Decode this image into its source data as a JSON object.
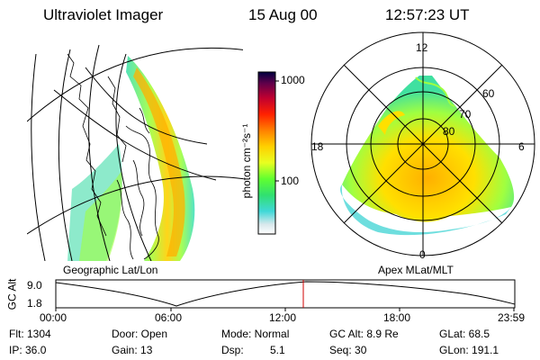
{
  "header": {
    "instrument": "Ultraviolet Imager",
    "date": "15 Aug 00",
    "time": "12:57:23 UT"
  },
  "colorbar": {
    "unit_label": "photon cm⁻²s⁻¹",
    "ticks": [
      "1000",
      "100"
    ]
  },
  "geo_panel": {
    "caption": "Geographic Lat/Lon"
  },
  "polar_panel": {
    "caption": "Apex MLat/MLT",
    "mlt_labels": {
      "top": "12",
      "left": "18",
      "right": "6",
      "bottom": "0"
    },
    "lat_labels": [
      "60",
      "70",
      "80"
    ]
  },
  "altitude_strip": {
    "ylabel": "GC Alt",
    "yticks": [
      "9.0",
      "1.8"
    ],
    "xticks": [
      "00:00",
      "06:00",
      "12:00",
      "18:00",
      "23:59"
    ]
  },
  "status": {
    "flt": "Flt: 1304",
    "ip": "IP: 36.0",
    "door": "Door: Open",
    "gain": "Gain: 13",
    "mode": "Mode: Normal",
    "dsp": "Dsp:",
    "dsp_val": "5.1",
    "gcalt": "GC Alt: 8.9 Re",
    "seq": "Seq: 30",
    "glat": "GLat: 68.5",
    "glon": "GLon: 191.1"
  }
}
